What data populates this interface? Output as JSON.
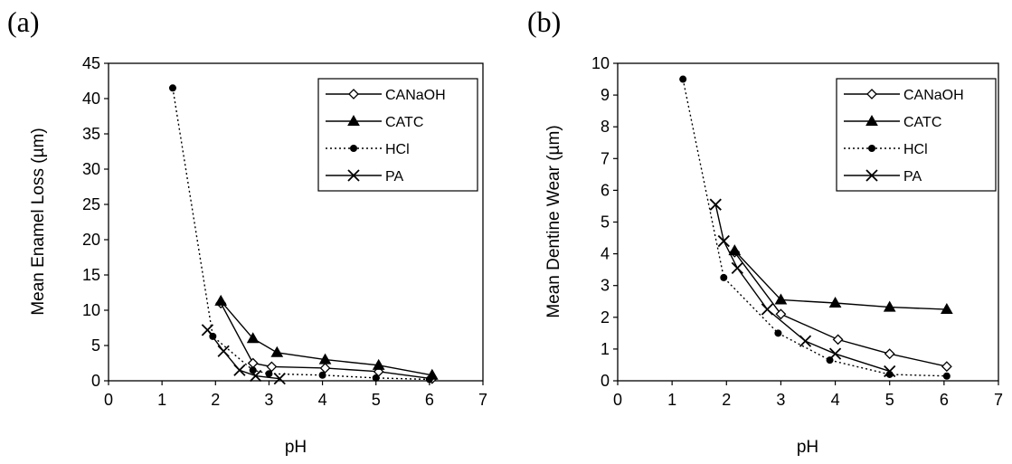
{
  "chart_data": [
    {
      "type": "line",
      "panel_label": "(a)",
      "xlabel": "pH",
      "ylabel": "Mean Enamel Loss (µm)",
      "xlim": [
        0,
        7
      ],
      "ylim": [
        0,
        45
      ],
      "xticks": [
        0,
        1,
        2,
        3,
        4,
        5,
        6,
        7
      ],
      "yticks": [
        0,
        5,
        10,
        15,
        20,
        25,
        30,
        35,
        40,
        45
      ],
      "grid": false,
      "legend_position": "top-right",
      "series": [
        {
          "name": "CANaOH",
          "marker": "diamond-open",
          "line": "solid",
          "x": [
            2.1,
            2.7,
            3.05,
            4.05,
            5.05,
            6.05
          ],
          "y": [
            11.0,
            2.5,
            2.0,
            1.8,
            1.3,
            0.3
          ]
        },
        {
          "name": "CATC",
          "marker": "triangle-filled",
          "line": "solid",
          "x": [
            2.1,
            2.7,
            3.15,
            4.05,
            5.05,
            6.05
          ],
          "y": [
            11.3,
            6.0,
            4.0,
            3.0,
            2.2,
            0.8
          ]
        },
        {
          "name": "HCl",
          "marker": "circle-filled",
          "line": "dotted",
          "x": [
            1.2,
            1.95,
            2.7,
            3.0,
            4.0,
            5.0,
            6.0
          ],
          "y": [
            41.5,
            6.3,
            1.5,
            1.0,
            0.8,
            0.4,
            0.2
          ]
        },
        {
          "name": "PA",
          "marker": "x",
          "line": "solid",
          "x": [
            1.85,
            2.15,
            2.45,
            2.75,
            3.2
          ],
          "y": [
            7.2,
            4.2,
            1.5,
            0.7,
            0.3
          ]
        }
      ]
    },
    {
      "type": "line",
      "panel_label": "(b)",
      "xlabel": "pH",
      "ylabel": "Mean Dentine Wear (µm)",
      "xlim": [
        0,
        7
      ],
      "ylim": [
        0,
        10
      ],
      "xticks": [
        0,
        1,
        2,
        3,
        4,
        5,
        6,
        7
      ],
      "yticks": [
        0,
        1,
        2,
        3,
        4,
        5,
        6,
        7,
        8,
        9,
        10
      ],
      "grid": false,
      "legend_position": "top-right",
      "series": [
        {
          "name": "CANaOH",
          "marker": "diamond-open",
          "line": "solid",
          "x": [
            2.15,
            3.0,
            4.05,
            5.0,
            6.05
          ],
          "y": [
            4.05,
            2.1,
            1.3,
            0.85,
            0.45
          ]
        },
        {
          "name": "CATC",
          "marker": "triangle-filled",
          "line": "solid",
          "x": [
            2.15,
            3.0,
            4.0,
            5.0,
            6.05
          ],
          "y": [
            4.1,
            2.55,
            2.45,
            2.32,
            2.25
          ]
        },
        {
          "name": "HCl",
          "marker": "circle-filled",
          "line": "dotted",
          "x": [
            1.2,
            1.95,
            2.95,
            3.9,
            5.0,
            6.05
          ],
          "y": [
            9.5,
            3.25,
            1.5,
            0.65,
            0.2,
            0.15
          ]
        },
        {
          "name": "PA",
          "marker": "x",
          "line": "solid",
          "x": [
            1.8,
            1.95,
            2.2,
            2.75,
            3.45,
            4.0,
            5.0
          ],
          "y": [
            5.55,
            4.4,
            3.55,
            2.25,
            1.25,
            0.85,
            0.3
          ]
        }
      ]
    }
  ]
}
